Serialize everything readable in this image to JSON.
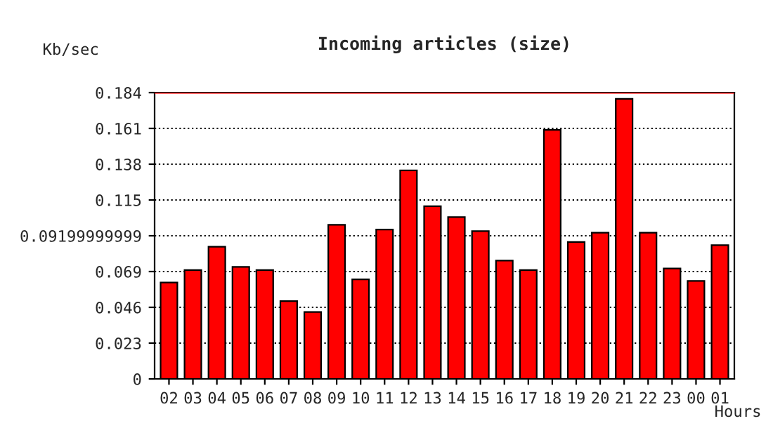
{
  "chart_data": {
    "type": "bar",
    "title": "Incoming articles (size)",
    "xlabel": "Hours",
    "ylabel": "Kb/sec",
    "categories": [
      "02",
      "03",
      "04",
      "05",
      "06",
      "07",
      "08",
      "09",
      "10",
      "11",
      "12",
      "13",
      "14",
      "15",
      "16",
      "17",
      "18",
      "19",
      "20",
      "21",
      "22",
      "23",
      "00",
      "01"
    ],
    "values": [
      0.062,
      0.07,
      0.085,
      0.072,
      0.07,
      0.05,
      0.043,
      0.099,
      0.064,
      0.096,
      0.134,
      0.111,
      0.104,
      0.095,
      0.076,
      0.07,
      0.16,
      0.088,
      0.094,
      0.18,
      0.094,
      0.071,
      0.063,
      0.086
    ],
    "color": "#ff0000",
    "ylim": [
      0,
      0.184
    ],
    "yticks": [
      0,
      0.023,
      0.046,
      0.069,
      0.09199999999,
      0.115,
      0.138,
      0.161,
      0.184
    ],
    "grid": "y",
    "line_style": "dotted",
    "ref_lines": [
      {
        "axis": "y",
        "value": 0.184,
        "color": "#ff0000"
      }
    ]
  }
}
